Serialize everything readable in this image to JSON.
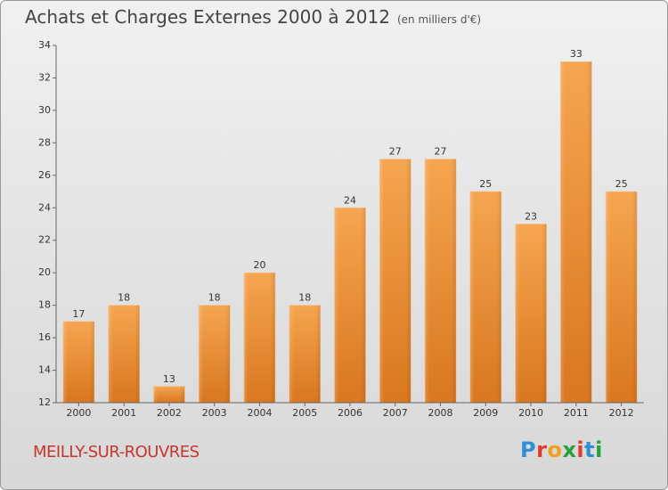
{
  "title": "Achats et Charges Externes 2000 à 2012",
  "subtitle": "(en milliers d'€)",
  "place": "MEILLY-SUR-ROUVRES",
  "logo": "Proxiti",
  "colors": {
    "bar_light": "#f6a550",
    "bar_dark": "#d8771f",
    "axis": "#666666",
    "place": "#c7352f"
  },
  "chart_data": {
    "type": "bar",
    "categories": [
      "2000",
      "2001",
      "2002",
      "2003",
      "2004",
      "2005",
      "2006",
      "2007",
      "2008",
      "2009",
      "2010",
      "2011",
      "2012"
    ],
    "values": [
      17,
      18,
      13,
      18,
      20,
      18,
      24,
      27,
      27,
      25,
      23,
      33,
      25
    ],
    "data_labels": [
      "17",
      "18",
      "13",
      "18",
      "20",
      "18",
      "24",
      "27",
      "27",
      "25",
      "23",
      "33",
      "25"
    ],
    "title": "Achats et Charges Externes 2000 à 2012",
    "xlabel": "",
    "ylabel": "",
    "ylim": [
      12,
      34
    ],
    "yticks": [
      "12",
      "14",
      "16",
      "18",
      "20",
      "22",
      "24",
      "26",
      "28",
      "30",
      "32",
      "34"
    ],
    "grid": false,
    "legend": "none"
  }
}
